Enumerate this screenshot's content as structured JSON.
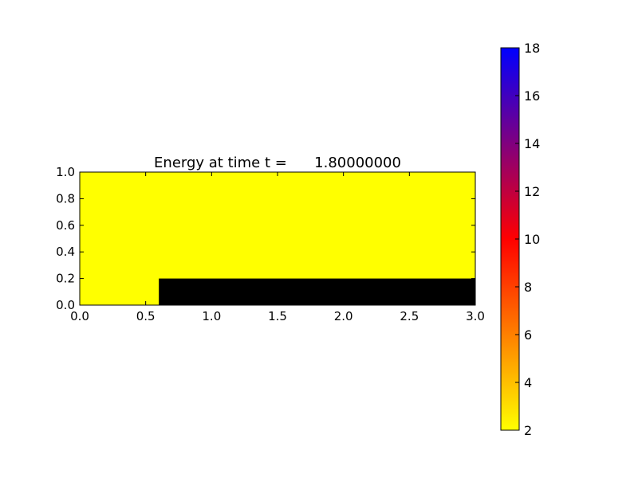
{
  "chart_data": {
    "type": "heatmap",
    "title": "Energy at time t =      1.80000000",
    "xlabel": "",
    "ylabel": "",
    "xlim": [
      0.0,
      3.0
    ],
    "ylim": [
      0.0,
      1.0
    ],
    "x_ticks": [
      "0.0",
      "0.5",
      "1.0",
      "1.5",
      "2.0",
      "2.5",
      "3.0"
    ],
    "y_ticks": [
      "0.0",
      "0.2",
      "0.4",
      "0.6",
      "0.8",
      "1.0"
    ],
    "grid": false,
    "background_value": 2,
    "regions": [
      {
        "name": "obstacle",
        "x": [
          0.6,
          3.0
        ],
        "y": [
          0.0,
          0.2
        ],
        "color": "#000000"
      }
    ],
    "colorbar": {
      "range": [
        2,
        18
      ],
      "ticks": [
        "2",
        "4",
        "6",
        "8",
        "10",
        "12",
        "14",
        "16",
        "18"
      ],
      "stops": [
        {
          "value": 2,
          "color": "#ffff00"
        },
        {
          "value": 6,
          "color": "#ff8000"
        },
        {
          "value": 10,
          "color": "#ff0000"
        },
        {
          "value": 14,
          "color": "#80007f"
        },
        {
          "value": 18,
          "color": "#0000ff"
        }
      ]
    }
  }
}
